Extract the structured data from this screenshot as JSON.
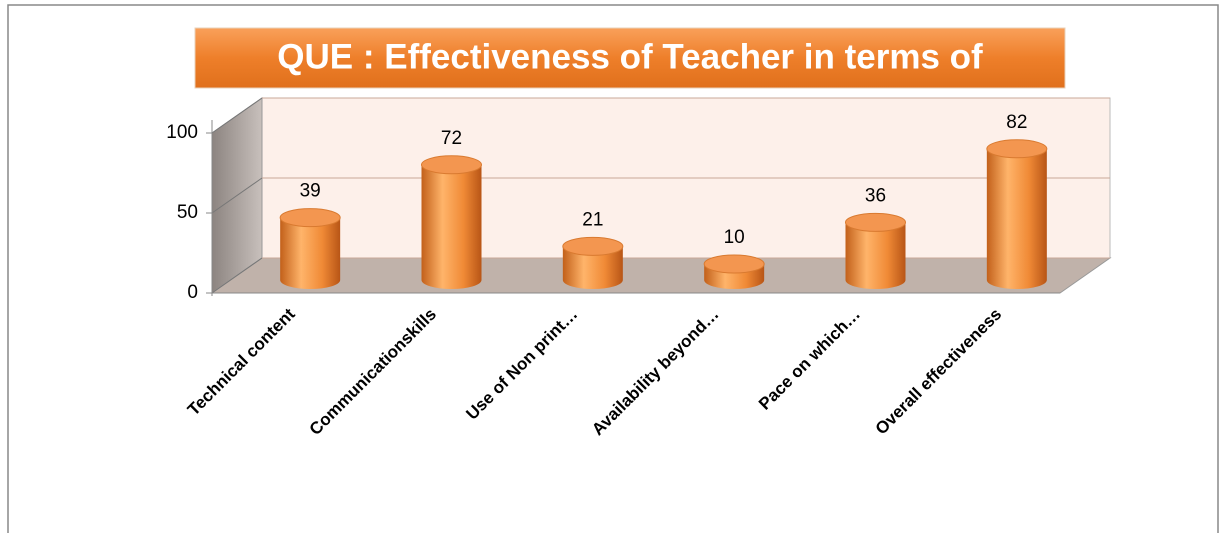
{
  "chart_data": {
    "type": "bar3d",
    "title": "QUE : Effectiveness of Teacher in terms of",
    "categories": [
      "Technical content",
      "Communicationskills",
      "Use of Non print…",
      "Availability beyond…",
      "Pace on which…",
      "Overall effectiveness"
    ],
    "values": [
      39,
      72,
      21,
      10,
      36,
      82
    ],
    "color": "#f79646",
    "ylim": [
      0,
      100
    ],
    "yticks": [
      0,
      50,
      100
    ],
    "grid": true
  }
}
